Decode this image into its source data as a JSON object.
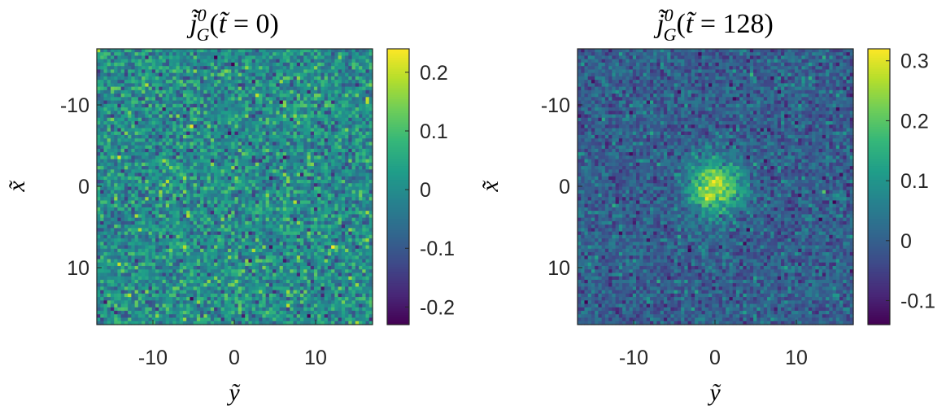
{
  "chart_data": [
    {
      "type": "heatmap",
      "title": "j̃⁰_G(t̃ = 0)",
      "xlabel": "ỹ",
      "ylabel": "x̃",
      "xlim": [
        -17,
        17
      ],
      "ylim": [
        -17,
        17
      ],
      "y_direction": "down",
      "xticks": [
        "-10",
        "0",
        "10"
      ],
      "yticks": [
        "-10",
        "0",
        "10"
      ],
      "colormap": "viridis",
      "colorbar": {
        "min": -0.23,
        "max": 0.24,
        "ticks": [
          "0.2",
          "0.1",
          "0",
          "-0.1",
          "-0.2"
        ]
      },
      "field": {
        "description": "uniform random noise",
        "mean": 0.0,
        "noise_std": 0.065,
        "peak": 0.0
      }
    },
    {
      "type": "heatmap",
      "title": "j̃⁰_G(t̃ = 128)",
      "xlabel": "ỹ",
      "ylabel": "x̃",
      "xlim": [
        -17,
        17
      ],
      "ylim": [
        -17,
        17
      ],
      "y_direction": "down",
      "xticks": [
        "-10",
        "0",
        "10"
      ],
      "yticks": [
        "-10",
        "0",
        "10"
      ],
      "colormap": "viridis",
      "colorbar": {
        "min": -0.14,
        "max": 0.32,
        "ticks": [
          "0.3",
          "0.2",
          "0.1",
          "0",
          "-0.1"
        ]
      },
      "field": {
        "description": "noise with gaussian blob at center",
        "mean": 0.0,
        "noise_std": 0.045,
        "peak": 0.26,
        "center": [
          0,
          0
        ],
        "sigma": 2.3
      }
    }
  ]
}
